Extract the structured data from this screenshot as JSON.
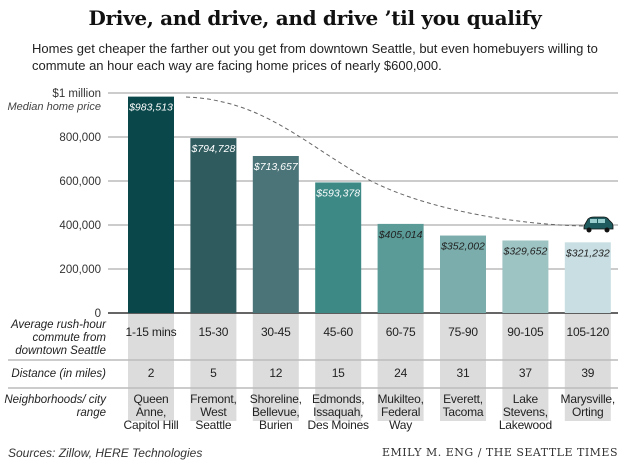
{
  "title": "Drive, and drive, and drive ’til you qualify",
  "subtitle": "Homes get cheaper the farther out you get from downtown Seattle, but even homebuyers willing to commute an hour each way are facing home prices of nearly $600,000.",
  "chart_data": {
    "type": "bar",
    "ylabel": "Median home price",
    "ylim": [
      0,
      1000000
    ],
    "yticks": [
      0,
      200000,
      400000,
      600000,
      800000,
      1000000
    ],
    "ytick_labels": [
      "0",
      "200,000",
      "400,000",
      "600,000",
      "800,000",
      "$1 million"
    ],
    "grid": true,
    "categories": [
      "1-15 mins",
      "15-30",
      "30-45",
      "45-60",
      "60-75",
      "75-90",
      "90-105",
      "105-120"
    ],
    "values": [
      983513,
      794728,
      713657,
      593378,
      405014,
      352002,
      329652,
      321232
    ],
    "value_labels": [
      "$983,513",
      "$794,728",
      "$713,657",
      "$593,378",
      "$405,014",
      "$352,002",
      "$329,652",
      "$321,232"
    ],
    "colors": [
      "#0a474a",
      "#2f5b5f",
      "#4b7478",
      "#3c8986",
      "#5a9a97",
      "#7aadab",
      "#9ec3c3",
      "#c8dee2"
    ],
    "annotation_icon": "car-icon",
    "rows": [
      {
        "label": "Average rush-hour commute from downtown Seattle",
        "values": [
          "1-15 mins",
          "15-30",
          "30-45",
          "45-60",
          "60-75",
          "75-90",
          "90-105",
          "105-120"
        ]
      },
      {
        "label": "Distance (in miles)",
        "values": [
          "2",
          "5",
          "12",
          "15",
          "24",
          "31",
          "37",
          "39"
        ]
      },
      {
        "label": "Neighborhoods/ city range",
        "values": [
          "Queen Anne, Capitol Hill",
          "Fremont, West Seattle",
          "Shoreline, Bellevue, Burien",
          "Edmonds, Issaquah, Des Moines",
          "Mukilteo, Federal Way",
          "Everett, Tacoma",
          "Lake Stevens, Lakewood",
          "Marysville, Orting"
        ]
      }
    ]
  },
  "footer": {
    "sources": "Sources: Zillow, HERE Technologies",
    "credit": "EMILY M. ENG / THE SEATTLE TIMES"
  }
}
